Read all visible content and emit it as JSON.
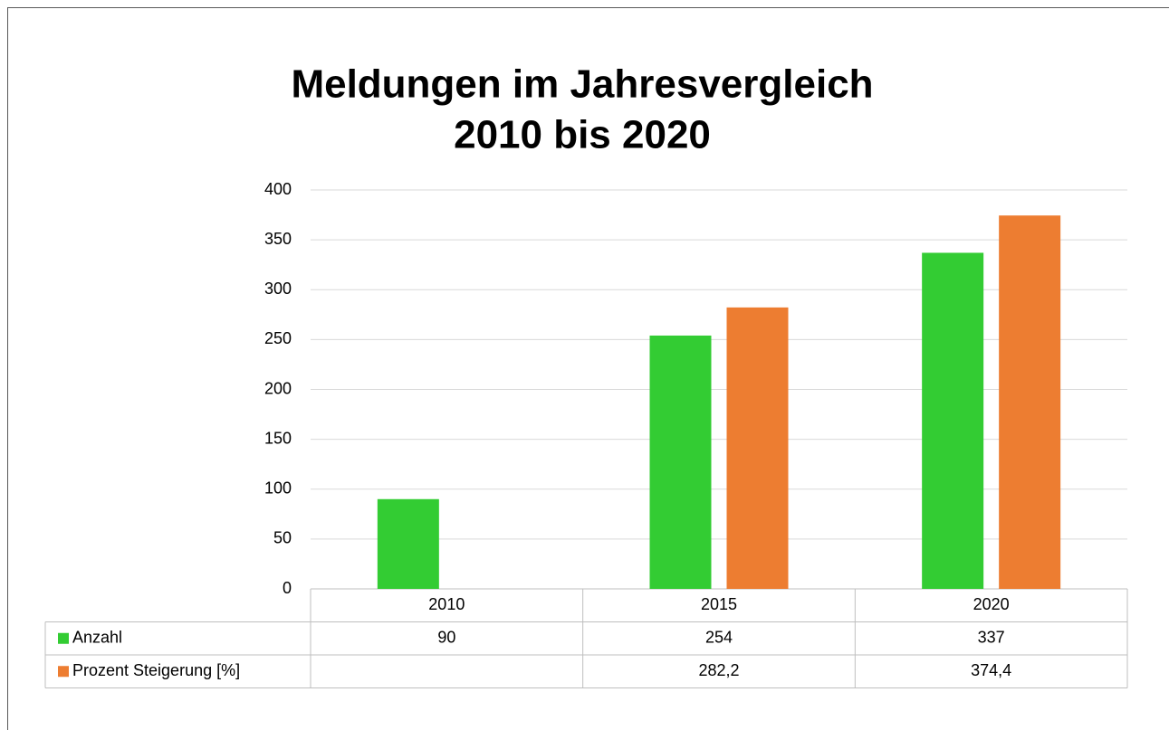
{
  "chart_data": {
    "type": "bar",
    "title": [
      "Meldungen im Jahresvergleich",
      "2010 bis 2020"
    ],
    "categories": [
      "2010",
      "2015",
      "2020"
    ],
    "series": [
      {
        "name": "Anzahl",
        "color": "#33cc33",
        "values": [
          90,
          254,
          337
        ]
      },
      {
        "name": "Prozent Steigerung [%]",
        "color": "#ed7d31",
        "values": [
          null,
          282.2,
          374.4
        ],
        "value_labels": [
          null,
          "282,2",
          "374,4"
        ]
      }
    ],
    "ylim": [
      0,
      400
    ],
    "yticks": [
      0,
      50,
      100,
      150,
      200,
      250,
      300,
      350,
      400
    ],
    "grid": true,
    "data_table": true
  }
}
